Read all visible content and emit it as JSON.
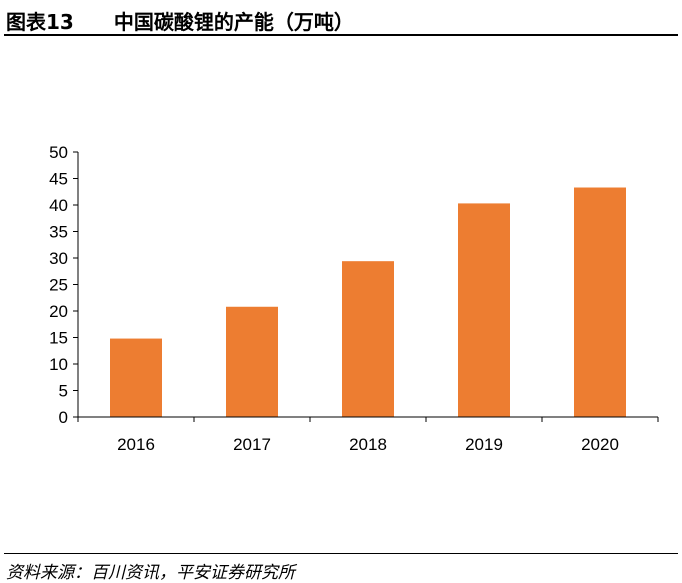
{
  "header": {
    "figure_label": "图表13",
    "title": "中国碳酸锂的产能（万吨）"
  },
  "source": "资料来源：百川资讯，平安证券研究所",
  "colors": {
    "bar": "#ED7D31",
    "axis": "#000000"
  },
  "chart_data": {
    "type": "bar",
    "title": "中国碳酸锂的产能（万吨）",
    "categories": [
      "2016",
      "2017",
      "2018",
      "2019",
      "2020"
    ],
    "values": [
      14.8,
      20.8,
      29.4,
      40.3,
      43.3
    ],
    "ylim": [
      0,
      50
    ],
    "yticks": [
      "0",
      "5",
      "10",
      "15",
      "20",
      "25",
      "30",
      "35",
      "40",
      "45",
      "50"
    ],
    "grid": false,
    "legend": "none"
  }
}
